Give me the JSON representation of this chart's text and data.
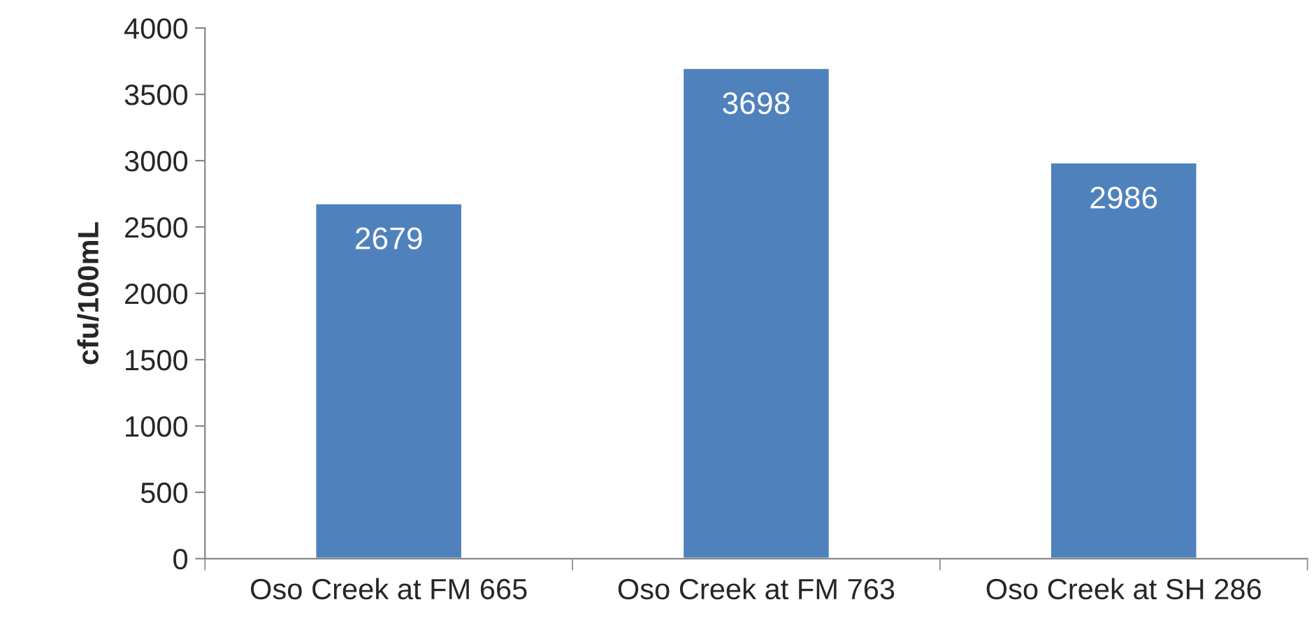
{
  "chart_data": {
    "type": "bar",
    "ylabel": "cfu/100mL",
    "categories": [
      "Oso Creek at FM 665",
      "Oso Creek at FM 763",
      "Oso Creek at SH 286"
    ],
    "values": [
      2679,
      3698,
      2986
    ],
    "color": "#4f81bd",
    "ylim": [
      0,
      4000
    ],
    "yticks": [
      0,
      500,
      1000,
      1500,
      2000,
      2500,
      3000,
      3500,
      4000
    ],
    "grid": false,
    "data_labels": true
  }
}
